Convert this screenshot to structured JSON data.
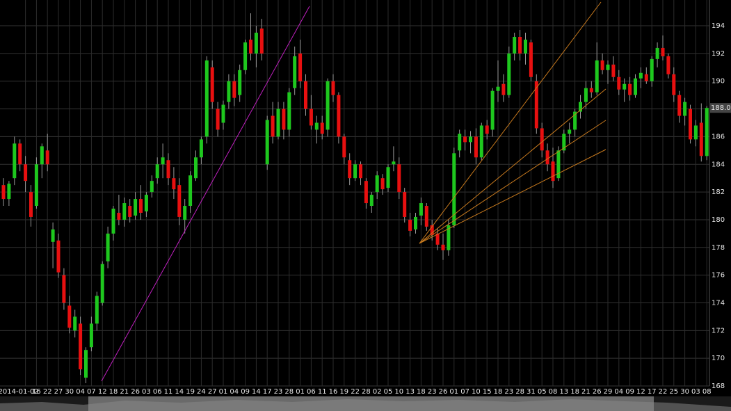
{
  "chart_data": {
    "type": "candlestick",
    "up_color": "#1ec81e",
    "down_color": "#e81010",
    "wick_color": "#9a9a9a",
    "grid": true,
    "ylim": [
      168,
      195.86
    ],
    "yticks": [
      168,
      170,
      172,
      174,
      176,
      178,
      180,
      182,
      184,
      186,
      188,
      190,
      192,
      194
    ],
    "categories": [
      null,
      null,
      null,
      null,
      "2014-01-02",
      null,
      "16",
      null,
      "22",
      null,
      "27",
      null,
      "30",
      null,
      "04",
      null,
      "07",
      null,
      "12",
      null,
      "18",
      null,
      "21",
      null,
      "26",
      null,
      "03",
      null,
      "06",
      null,
      "11",
      null,
      "14",
      null,
      "19",
      null,
      "24",
      null,
      "27",
      null,
      "01",
      null,
      "04",
      null,
      "09",
      null,
      "14",
      null,
      "17",
      null,
      "23",
      null,
      "28",
      null,
      "01",
      null,
      "06",
      null,
      "11",
      null,
      "16",
      null,
      "19",
      null,
      "22",
      null,
      "28",
      null,
      "02",
      null,
      "05",
      null,
      "10",
      null,
      "13",
      null,
      "18",
      null,
      "23",
      null,
      "26",
      null,
      "01",
      null,
      "07",
      null,
      "10",
      null,
      "15",
      null,
      "18",
      null,
      "23",
      null,
      "28",
      null,
      "31",
      null,
      "05",
      null,
      "08",
      null,
      "13",
      null,
      "18",
      null,
      "21",
      null,
      "26",
      null,
      "29",
      null,
      "04",
      null,
      "09",
      null,
      "12",
      null,
      "17",
      null,
      "22",
      null,
      "25",
      null,
      "30",
      null,
      "03",
      null,
      "08"
    ],
    "ohlc": [
      [
        182.5,
        183,
        181,
        181.5
      ],
      [
        181.5,
        182.8,
        181,
        182.6
      ],
      [
        183,
        186,
        182.5,
        185.5
      ],
      [
        185.5,
        185.8,
        183.5,
        184
      ],
      [
        184,
        184.6,
        182,
        182.8
      ],
      [
        182,
        182.5,
        179.5,
        180.2
      ],
      [
        181,
        184.5,
        180.8,
        184
      ],
      [
        184,
        185.5,
        183,
        185.3
      ],
      [
        185,
        186.2,
        183.5,
        184
      ],
      [
        178.4,
        179.8,
        176.5,
        179.3
      ],
      [
        178.5,
        179,
        175.8,
        176.2
      ],
      [
        176,
        176.5,
        173.5,
        174
      ],
      [
        173.8,
        174.5,
        171.8,
        172.2
      ],
      [
        172,
        173.5,
        171.5,
        173
      ],
      [
        172.5,
        173,
        168.8,
        169.2
      ],
      [
        168.6,
        170.8,
        168.2,
        170.6
      ],
      [
        170.8,
        173,
        170.5,
        172.5
      ],
      [
        172.5,
        174.8,
        172,
        174.5
      ],
      [
        174,
        177,
        173.8,
        176.8
      ],
      [
        177,
        179.5,
        176.5,
        179
      ],
      [
        179,
        181,
        178.5,
        180.8
      ],
      [
        180.5,
        181.8,
        179.6,
        180
      ],
      [
        180,
        181.6,
        179.5,
        181.2
      ],
      [
        181,
        181.5,
        179.8,
        180.2
      ],
      [
        180.3,
        182,
        180,
        181.5
      ],
      [
        181.5,
        182.5,
        180,
        180.5
      ],
      [
        180.6,
        182,
        180.2,
        181.8
      ],
      [
        182,
        183.2,
        181.6,
        182.8
      ],
      [
        183,
        184.5,
        182.6,
        184
      ],
      [
        184,
        185.5,
        183,
        184.5
      ],
      [
        184.3,
        184.8,
        182.5,
        183
      ],
      [
        183,
        183.8,
        181.5,
        182.2
      ],
      [
        182.5,
        183,
        179.6,
        180.2
      ],
      [
        180,
        181.5,
        179,
        181
      ],
      [
        181,
        183.5,
        180.5,
        183.2
      ],
      [
        183,
        185,
        182.8,
        184.5
      ],
      [
        184.5,
        186,
        184,
        185.8
      ],
      [
        186,
        191.8,
        185.5,
        191.5
      ],
      [
        191,
        191.5,
        188,
        188.5
      ],
      [
        188,
        188.5,
        186,
        186.5
      ],
      [
        187,
        188.6,
        186.5,
        188.3
      ],
      [
        188.5,
        190.5,
        188,
        190
      ],
      [
        190,
        190.5,
        188.2,
        188.8
      ],
      [
        189,
        191.2,
        188.5,
        190.8
      ],
      [
        190.8,
        193,
        190.5,
        192.8
      ],
      [
        193,
        194.9,
        191.5,
        192
      ],
      [
        192,
        194,
        191,
        193.5
      ],
      [
        193.8,
        194.5,
        191.5,
        192
      ],
      [
        184,
        187.5,
        183.6,
        187.2
      ],
      [
        187.5,
        188.5,
        185.5,
        186
      ],
      [
        186,
        188.5,
        185.8,
        188
      ],
      [
        188,
        188.5,
        185.8,
        186.5
      ],
      [
        186.5,
        189.5,
        186,
        189.2
      ],
      [
        189.5,
        192.5,
        189,
        191.8
      ],
      [
        192,
        193,
        189.5,
        190
      ],
      [
        190,
        190.5,
        187.5,
        188
      ],
      [
        188,
        189,
        186.5,
        186.8
      ],
      [
        186.5,
        187.5,
        185.5,
        187
      ],
      [
        187,
        187.5,
        185.8,
        186.2
      ],
      [
        186.5,
        190.2,
        186,
        190
      ],
      [
        190,
        190.5,
        188.5,
        189
      ],
      [
        189,
        189.2,
        185.5,
        186
      ],
      [
        186,
        186.2,
        184,
        184.5
      ],
      [
        184.3,
        184.8,
        182.5,
        183
      ],
      [
        183,
        184.3,
        182.8,
        184
      ],
      [
        184,
        184.2,
        182.5,
        183
      ],
      [
        182.8,
        183,
        180.8,
        181.2
      ],
      [
        181,
        182,
        180.5,
        181.8
      ],
      [
        182,
        183.5,
        181.5,
        183.2
      ],
      [
        183,
        183.3,
        181.8,
        182.2
      ],
      [
        182.3,
        184,
        182,
        183.8
      ],
      [
        184,
        185.3,
        183.5,
        184.2
      ],
      [
        184,
        184.5,
        181.5,
        182
      ],
      [
        182,
        182.3,
        179.8,
        180.2
      ],
      [
        180,
        180.5,
        178.8,
        179.2
      ],
      [
        179.3,
        180.5,
        179,
        180.2
      ],
      [
        180.3,
        181.6,
        179.6,
        181.2
      ],
      [
        181,
        181.2,
        179.2,
        179.5
      ],
      [
        179.6,
        180,
        178.5,
        178.9
      ],
      [
        179,
        179.4,
        177.8,
        178.2
      ],
      [
        178.2,
        179,
        177.1,
        177.8
      ],
      [
        177.8,
        180,
        177.4,
        179.6
      ],
      [
        179.6,
        185.2,
        179.4,
        184.8
      ],
      [
        185,
        186.5,
        184.5,
        186.2
      ],
      [
        186,
        186.5,
        185,
        185.6
      ],
      [
        185.6,
        186.4,
        184.8,
        186
      ],
      [
        186,
        186.6,
        184,
        184.5
      ],
      [
        184.5,
        187,
        184.3,
        186.8
      ],
      [
        186.8,
        187.2,
        185.8,
        186.2
      ],
      [
        186.5,
        189.5,
        186,
        189.3
      ],
      [
        189.3,
        191.5,
        188.5,
        189.6
      ],
      [
        189.8,
        190.5,
        188.5,
        189
      ],
      [
        189,
        192.5,
        188.8,
        192
      ],
      [
        192,
        193.5,
        191.5,
        193.2
      ],
      [
        193.2,
        193.7,
        191.5,
        192
      ],
      [
        192,
        193.5,
        191.2,
        193
      ],
      [
        192.8,
        193,
        190,
        190.3
      ],
      [
        190,
        190.5,
        186.2,
        186.6
      ],
      [
        186.6,
        187,
        184.5,
        185
      ],
      [
        185,
        185.5,
        183.5,
        184
      ],
      [
        184.2,
        185.2,
        182.3,
        182.8
      ],
      [
        183,
        185.3,
        182.8,
        185
      ],
      [
        185,
        186.5,
        184.8,
        186.2
      ],
      [
        186.2,
        187,
        185.5,
        186.5
      ],
      [
        186.5,
        188,
        186,
        187.8
      ],
      [
        187.8,
        189,
        187.3,
        188.5
      ],
      [
        188.5,
        190,
        188,
        189.5
      ],
      [
        189.5,
        190,
        188.8,
        189.2
      ],
      [
        189.2,
        192.8,
        189,
        191.5
      ],
      [
        191.5,
        192,
        190.5,
        190.8
      ],
      [
        190.8,
        191.5,
        189.8,
        191.2
      ],
      [
        191.2,
        191.8,
        190,
        190.3
      ],
      [
        190.3,
        190.8,
        189,
        189.4
      ],
      [
        189.4,
        190.2,
        188.5,
        189.8
      ],
      [
        189.8,
        190.3,
        188.6,
        189
      ],
      [
        189,
        190.5,
        188.8,
        190.2
      ],
      [
        190.2,
        191,
        189.5,
        190.6
      ],
      [
        190.5,
        191,
        189.8,
        190
      ],
      [
        190,
        191.8,
        189.6,
        191.6
      ],
      [
        191.6,
        192.8,
        191,
        192.4
      ],
      [
        192.4,
        193.3,
        191.5,
        191.8
      ],
      [
        191.8,
        192,
        190.2,
        190.5
      ],
      [
        190.5,
        191,
        188.5,
        189
      ],
      [
        189,
        189.3,
        187,
        187.5
      ],
      [
        187.5,
        188.8,
        186.8,
        188.5
      ],
      [
        188,
        188.3,
        185.5,
        185.8
      ],
      [
        185.8,
        187.2,
        185.3,
        186.8
      ],
      [
        187,
        188.4,
        184.2,
        184.6
      ],
      [
        184.6,
        188.2,
        184.3,
        188.07
      ]
    ]
  }
}
